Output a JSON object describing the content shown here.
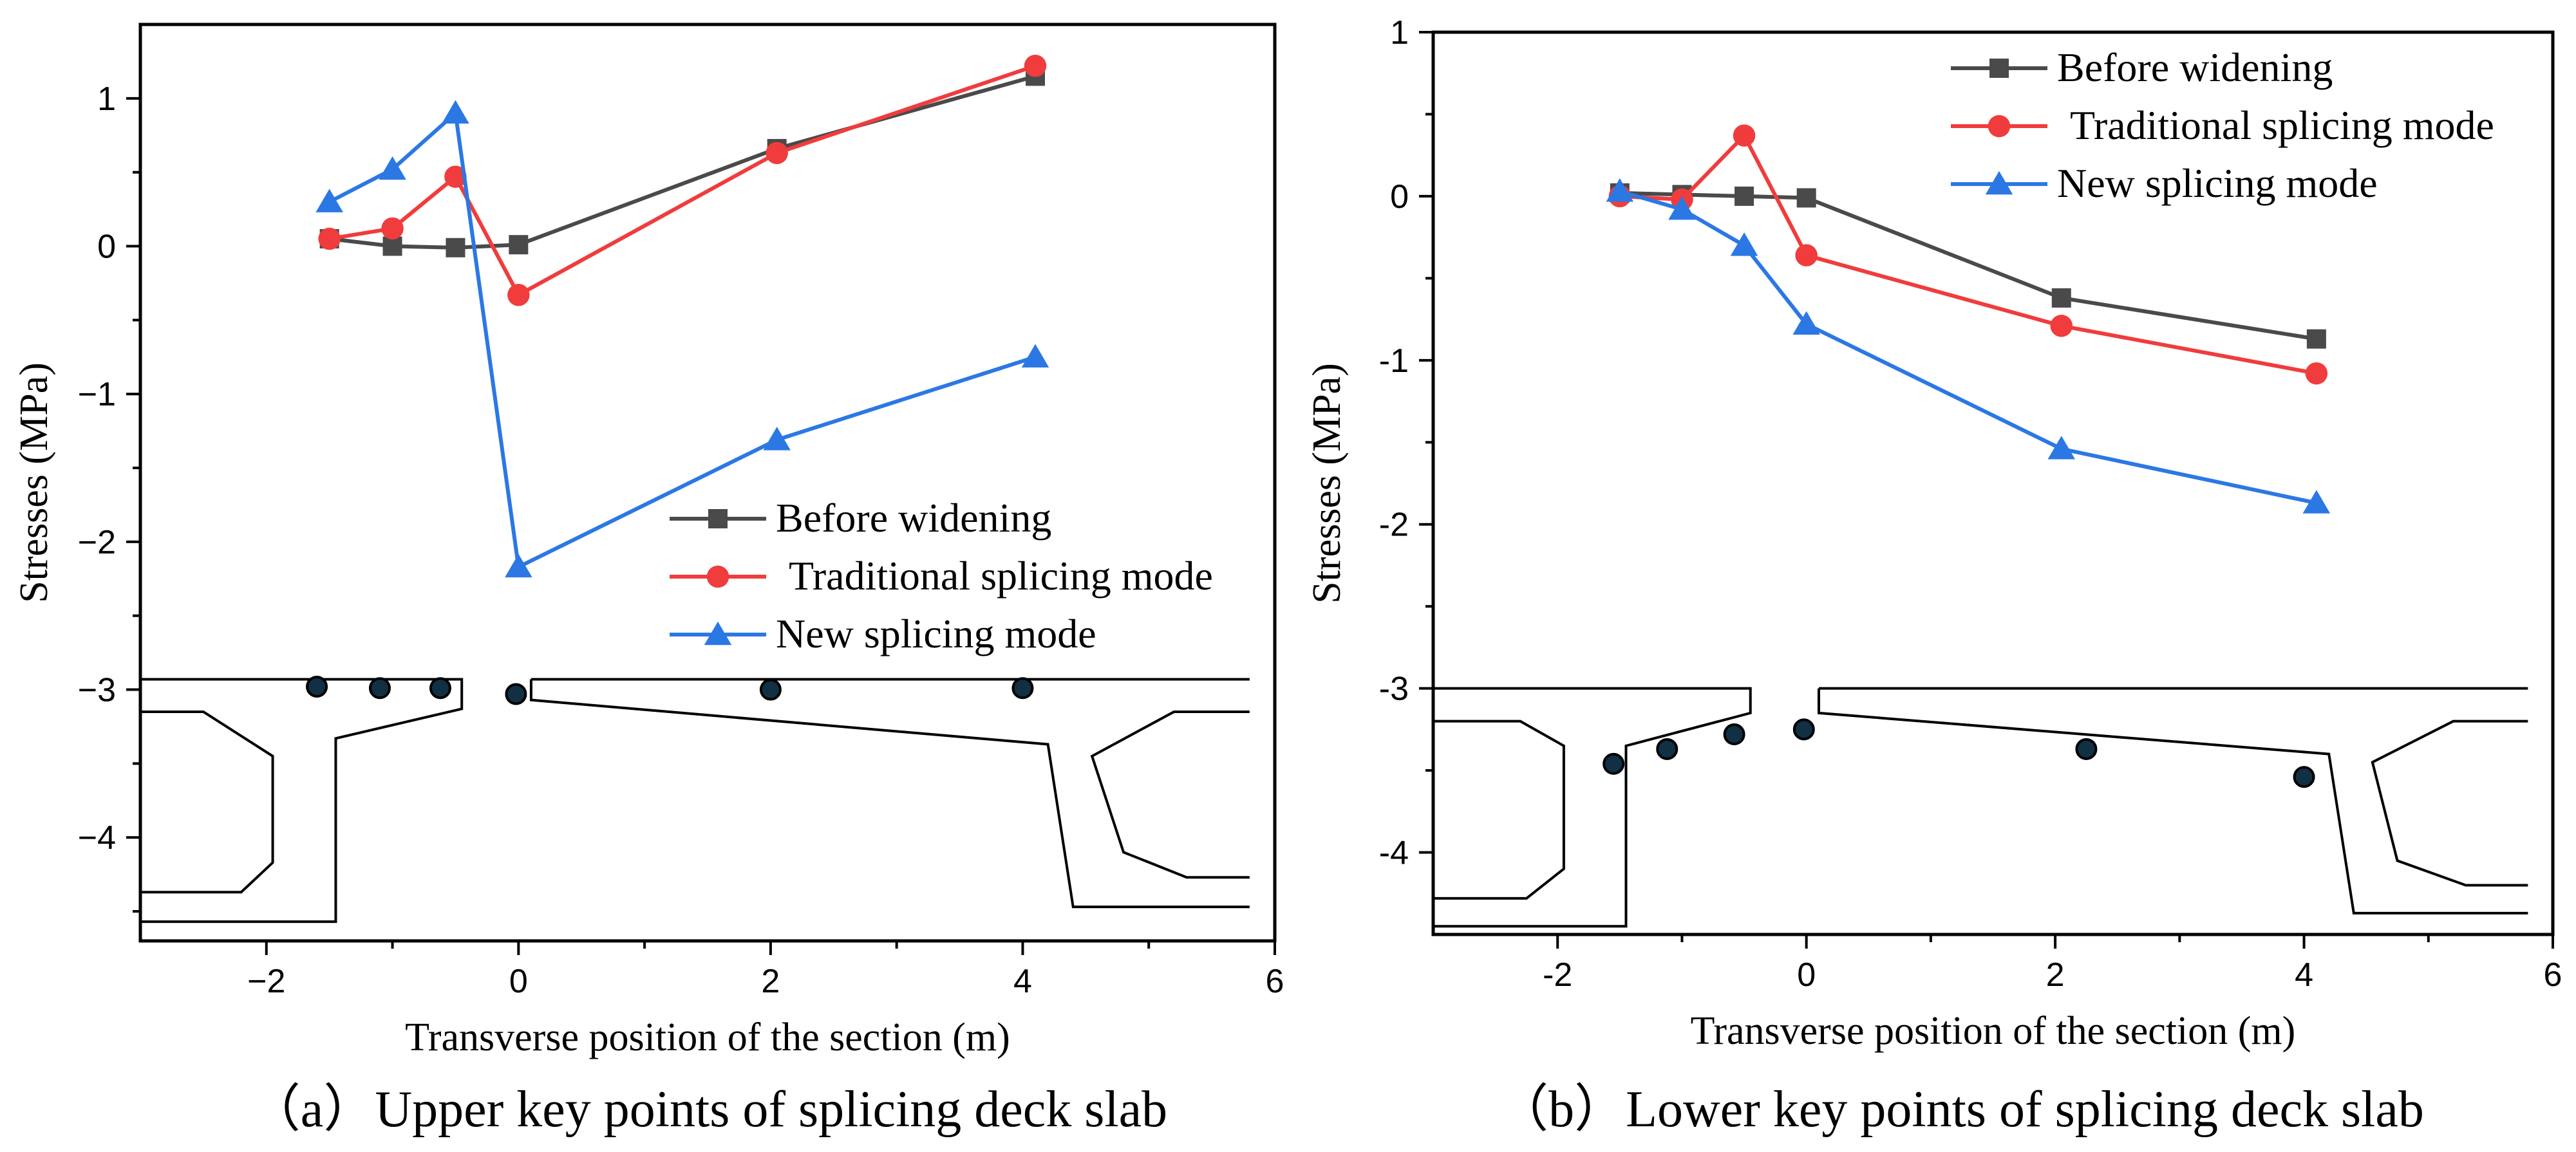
{
  "chart_data": [
    {
      "type": "line",
      "caption": "（a）Upper key points of splicing deck slab",
      "xlabel": "Transverse position of the section (m)",
      "ylabel": "Stresses (MPa)",
      "xlim": [
        -3,
        6
      ],
      "ylim": [
        -4.7,
        1.5
      ],
      "xticks": [
        -2,
        0,
        2,
        4,
        6
      ],
      "xtick_labels": [
        "−2",
        "0",
        "2",
        "4",
        "6"
      ],
      "yticks": [
        -4,
        -3,
        -2,
        -1,
        0,
        1
      ],
      "ytick_labels": [
        "−4",
        "−3",
        "−2",
        "−1",
        "0",
        "1"
      ],
      "legend_position": "lower-right",
      "series": [
        {
          "name": "Before widening",
          "color": "#4a4a4a",
          "marker": "square",
          "x": [
            -1.5,
            -1.0,
            -0.5,
            0.0,
            2.05,
            4.1
          ],
          "y": [
            0.05,
            0.0,
            -0.01,
            0.01,
            0.66,
            1.15
          ]
        },
        {
          "name": "Traditional splicing mode",
          "color": "#f03c3c",
          "marker": "circle",
          "x": [
            -1.5,
            -1.0,
            -0.5,
            0.0,
            2.05,
            4.1
          ],
          "y": [
            0.05,
            0.12,
            0.47,
            -0.33,
            0.63,
            1.22
          ]
        },
        {
          "name": "New splicing mode",
          "color": "#2b78e4",
          "marker": "triangle",
          "x": [
            -1.5,
            -1.0,
            -0.5,
            0.0,
            2.05,
            4.1
          ],
          "y": [
            0.3,
            0.52,
            0.9,
            -2.17,
            -1.31,
            -0.75
          ]
        }
      ],
      "key_points": {
        "x": [
          -1.6,
          -1.1,
          -0.62,
          -0.02,
          2.0,
          4.0
        ],
        "y": [
          -2.98,
          -2.99,
          -2.99,
          -3.03,
          -3.0,
          -2.99
        ]
      }
    },
    {
      "type": "line",
      "caption": "（b）Lower key points of splicing deck slab",
      "xlabel": "Transverse position of the section (m)",
      "ylabel": "Stresses (MPa)",
      "xlim": [
        -3,
        6
      ],
      "ylim": [
        -4.5,
        1
      ],
      "xticks": [
        -2,
        0,
        2,
        4,
        6
      ],
      "xtick_labels": [
        "-2",
        "0",
        "2",
        "4",
        "6"
      ],
      "yticks": [
        -4,
        -3,
        -2,
        -1,
        0,
        1
      ],
      "ytick_labels": [
        "-4",
        "-3",
        "-2",
        "-1",
        "0",
        "1"
      ],
      "legend_position": "top-right",
      "series": [
        {
          "name": "Before widening",
          "color": "#4a4a4a",
          "marker": "square",
          "x": [
            -1.5,
            -1.0,
            -0.5,
            0.0,
            2.05,
            4.1
          ],
          "y": [
            0.02,
            0.01,
            0.0,
            -0.01,
            -0.62,
            -0.87
          ]
        },
        {
          "name": "Traditional splicing mode",
          "color": "#f03c3c",
          "marker": "circle",
          "x": [
            -1.5,
            -1.0,
            -0.5,
            0.0,
            2.05,
            4.1
          ],
          "y": [
            0.0,
            -0.02,
            0.37,
            -0.36,
            -0.79,
            -1.08
          ]
        },
        {
          "name": "New splicing mode",
          "color": "#2b78e4",
          "marker": "triangle",
          "x": [
            -1.5,
            -1.0,
            -0.5,
            0.0,
            2.05,
            4.1
          ],
          "y": [
            0.03,
            -0.08,
            -0.3,
            -0.78,
            -1.54,
            -1.87
          ]
        }
      ],
      "key_points": {
        "x": [
          -1.55,
          -1.12,
          -0.58,
          -0.02,
          2.25,
          4.0
        ],
        "y": [
          -3.46,
          -3.37,
          -3.28,
          -3.25,
          -3.37,
          -3.54
        ]
      }
    }
  ]
}
